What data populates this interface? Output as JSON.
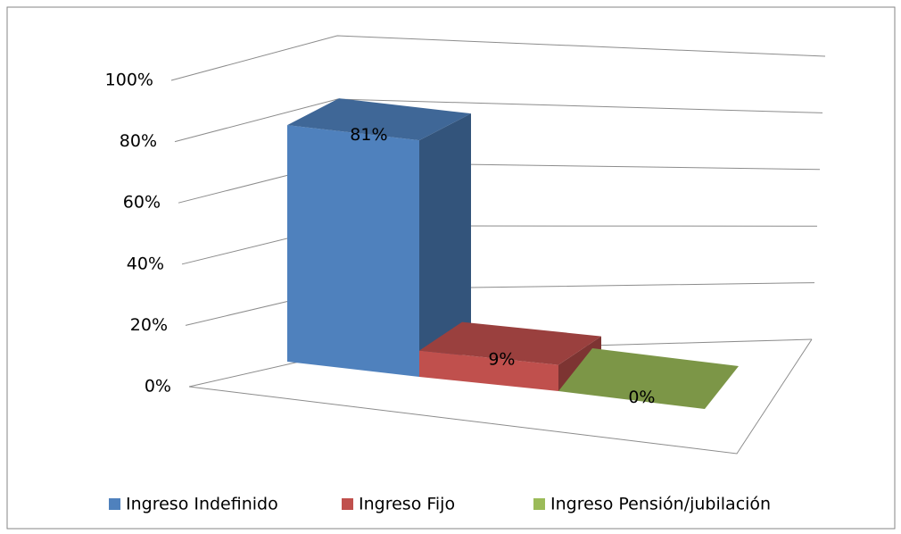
{
  "chart_data": {
    "type": "bar3d",
    "series": [
      {
        "name": "Ingreso Indefinido",
        "color": "#4f81bd",
        "values": [
          81
        ],
        "value_labels": [
          "81%"
        ]
      },
      {
        "name": "Ingreso Fijo",
        "color": "#c0504d",
        "values": [
          9
        ],
        "value_labels": [
          "9%"
        ]
      },
      {
        "name": "Ingreso Pensión/jubilación",
        "color": "#9bbb59",
        "values": [
          0
        ],
        "value_labels": [
          "0%"
        ]
      }
    ],
    "ylim": [
      0,
      100
    ],
    "yticks": [
      {
        "value": 0,
        "label": "0%"
      },
      {
        "value": 20,
        "label": "20%"
      },
      {
        "value": 40,
        "label": "40%"
      },
      {
        "value": 60,
        "label": "60%"
      },
      {
        "value": 80,
        "label": "80%"
      },
      {
        "value": 100,
        "label": "100%"
      }
    ],
    "grid": true,
    "legend": "bottom"
  }
}
